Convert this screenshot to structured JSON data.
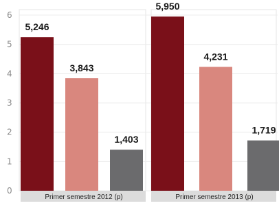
{
  "chart_data": {
    "type": "bar",
    "title": "",
    "xlabel": "",
    "ylabel": "",
    "ylim": [
      0,
      6
    ],
    "yticks": [
      "0",
      "1",
      "2",
      "3",
      "4",
      "5",
      "6"
    ],
    "categories": [
      "Primer semestre 2012 (p)",
      "Primer semestre 2013 (p)"
    ],
    "series": [
      {
        "values": [
          5.246,
          5.95
        ],
        "labels": [
          "5,246",
          "5,950"
        ],
        "color": "#7a1019"
      },
      {
        "values": [
          3.843,
          4.231
        ],
        "labels": [
          "3,843",
          "4,231"
        ],
        "color": "#d9877e"
      },
      {
        "values": [
          1.403,
          1.719
        ],
        "labels": [
          "1,403",
          "1,719"
        ],
        "color": "#6b6b6d"
      }
    ],
    "grid": true,
    "colors": {
      "group_panel": "#f1f1f1",
      "category_band": "#dcdcdc"
    }
  }
}
